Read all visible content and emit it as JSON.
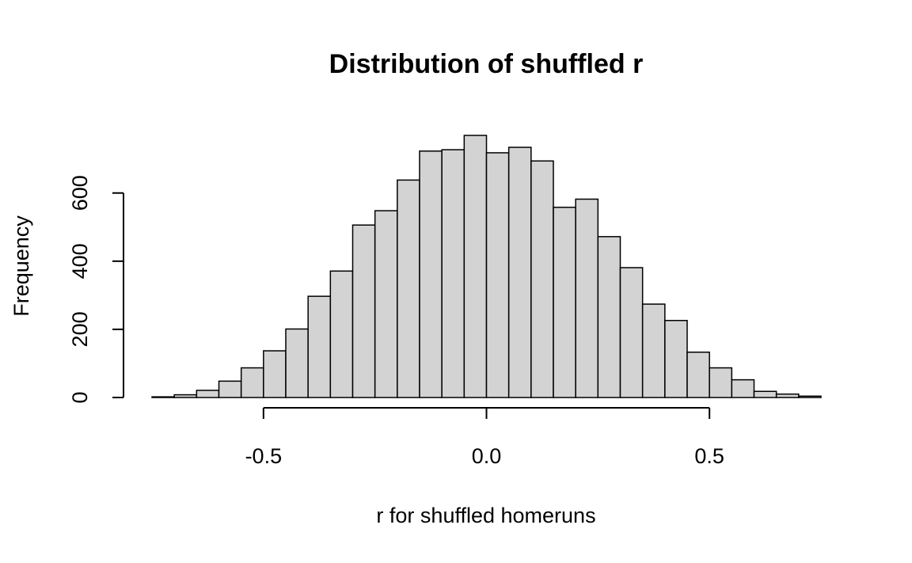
{
  "chart_data": {
    "type": "bar",
    "title": "Distribution of shuffled r",
    "xlabel": "r for shuffled homeruns",
    "ylabel": "Frequency",
    "bin_width": 0.05,
    "bin_edges": [
      -0.75,
      -0.7,
      -0.65,
      -0.6,
      -0.55,
      -0.5,
      -0.45,
      -0.4,
      -0.35,
      -0.3,
      -0.25,
      -0.2,
      -0.15,
      -0.1,
      -0.05,
      0.0,
      0.05,
      0.1,
      0.15,
      0.2,
      0.25,
      0.3,
      0.35,
      0.4,
      0.45,
      0.5,
      0.55,
      0.6,
      0.65,
      0.7,
      0.75
    ],
    "values": [
      2,
      8,
      21,
      48,
      87,
      137,
      201,
      297,
      371,
      506,
      548,
      638,
      723,
      727,
      769,
      718,
      734,
      694,
      558,
      582,
      472,
      381,
      274,
      226,
      133,
      87,
      52,
      18,
      10,
      4
    ],
    "xlim": [
      -0.75,
      0.75
    ],
    "ylim": [
      0,
      769
    ],
    "x_ticks": [
      -0.5,
      0.0,
      0.5
    ],
    "x_tick_labels": [
      "-0.5",
      "0.0",
      "0.5"
    ],
    "y_ticks": [
      0,
      200,
      400,
      600
    ],
    "y_tick_labels": [
      "0",
      "200",
      "400",
      "600"
    ],
    "bar_color": "#d3d3d3",
    "grid": false,
    "legend": "none"
  }
}
